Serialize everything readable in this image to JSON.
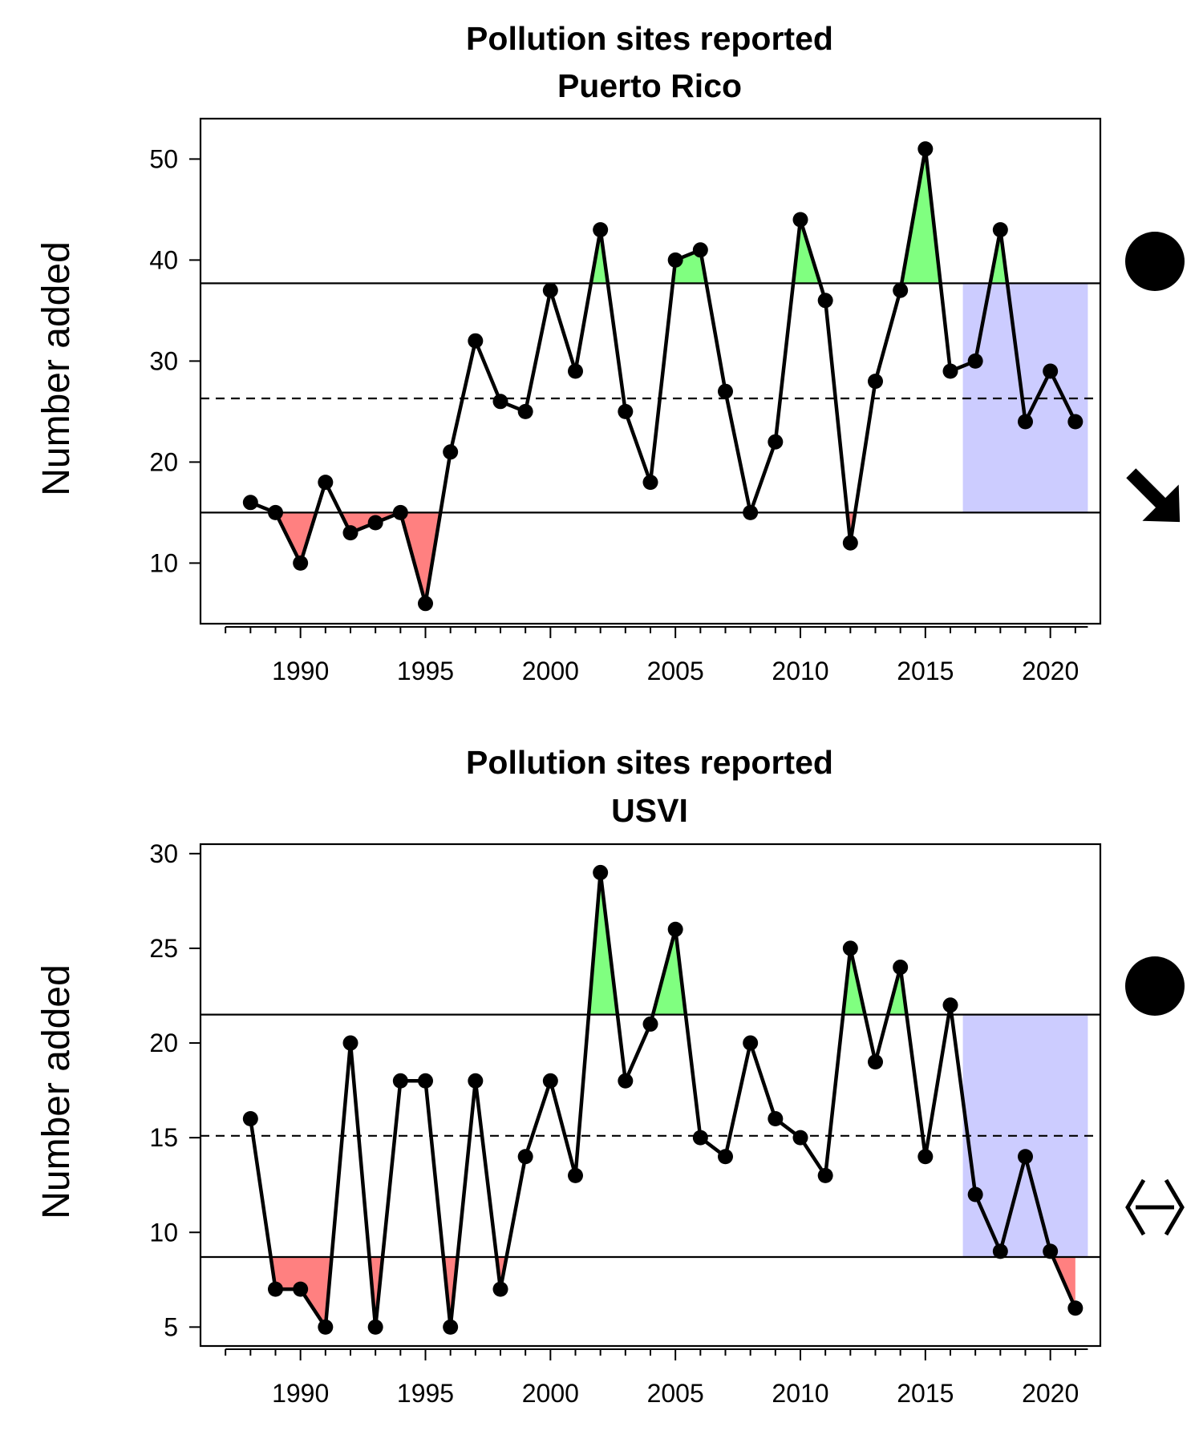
{
  "chart_data": [
    {
      "type": "line",
      "title": "Pollution sites reported",
      "subtitle": "Puerto Rico",
      "ylabel": "Number added",
      "xlabel": "",
      "xlim": [
        1986,
        2022
      ],
      "ylim": [
        4,
        54
      ],
      "yticks": [
        10,
        20,
        30,
        40,
        50
      ],
      "xticks": [
        1990,
        1995,
        2000,
        2005,
        2010,
        2015,
        2020
      ],
      "x": [
        1988,
        1989,
        1990,
        1991,
        1992,
        1993,
        1994,
        1995,
        1996,
        1997,
        1998,
        1999,
        2000,
        2001,
        2002,
        2003,
        2004,
        2005,
        2006,
        2007,
        2008,
        2009,
        2010,
        2011,
        2012,
        2013,
        2014,
        2015,
        2016,
        2017,
        2018,
        2019,
        2020,
        2021
      ],
      "series": [
        {
          "values": [
            16,
            15,
            10,
            18,
            13,
            14,
            15,
            6,
            21,
            32,
            26,
            25,
            37,
            29,
            43,
            25,
            18,
            40,
            41,
            27,
            15,
            22,
            44,
            36,
            12,
            28,
            37,
            51,
            29,
            30,
            43,
            24,
            29,
            24
          ]
        }
      ],
      "mean": 26.3,
      "upper_sd": 37.7,
      "lower_sd": 15.0,
      "recent_window": [
        2016.5,
        2021.5
      ],
      "trend_symbol": "filled-circle",
      "recent_trend": "decreasing",
      "colors": {
        "above": "#80ff80",
        "below": "#ff8080",
        "recent": "#ccccff",
        "line": "#000000"
      }
    },
    {
      "type": "line",
      "title": "Pollution sites reported",
      "subtitle": "USVI",
      "ylabel": "Number added",
      "xlabel": "",
      "xlim": [
        1986,
        2022
      ],
      "ylim": [
        4,
        30.5
      ],
      "yticks": [
        5,
        10,
        15,
        20,
        25,
        30
      ],
      "xticks": [
        1990,
        1995,
        2000,
        2005,
        2010,
        2015,
        2020
      ],
      "x": [
        1988,
        1989,
        1990,
        1991,
        1992,
        1993,
        1994,
        1995,
        1996,
        1997,
        1998,
        1999,
        2000,
        2001,
        2002,
        2003,
        2004,
        2005,
        2006,
        2007,
        2008,
        2009,
        2010,
        2011,
        2012,
        2013,
        2014,
        2015,
        2016,
        2017,
        2018,
        2019,
        2020,
        2021
      ],
      "series": [
        {
          "values": [
            16,
            7,
            7,
            5,
            20,
            5,
            18,
            18,
            5,
            18,
            7,
            14,
            18,
            13,
            29,
            18,
            21,
            26,
            15,
            14,
            20,
            16,
            15,
            13,
            25,
            19,
            24,
            14,
            22,
            12,
            9,
            14,
            9,
            6
          ]
        }
      ],
      "mean": 15.1,
      "upper_sd": 21.5,
      "lower_sd": 8.7,
      "recent_window": [
        2016.5,
        2021.5
      ],
      "trend_symbol": "filled-circle",
      "recent_trend": "no-trend-double-arrow",
      "colors": {
        "above": "#80ff80",
        "below": "#ff8080",
        "recent": "#ccccff",
        "line": "#000000"
      }
    }
  ]
}
